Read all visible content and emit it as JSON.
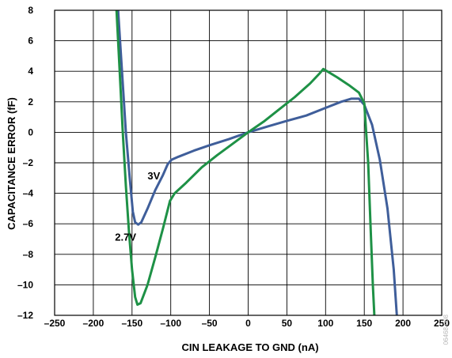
{
  "chart_data": {
    "type": "line",
    "title": "",
    "xlabel": "CIN LEAKAGE TO GND (nA)",
    "ylabel": "CAPACITANCE ERROR (fF)",
    "xlim": [
      -250,
      250
    ],
    "ylim": [
      -12,
      8
    ],
    "xticks": [
      "–250",
      "–200",
      "–150",
      "–100",
      "–50",
      "0",
      "50",
      "100",
      "150",
      "200",
      "250"
    ],
    "yticks": [
      "–12",
      "–10",
      "–8",
      "–6",
      "–4",
      "–2",
      "0",
      "2",
      "4",
      "6",
      "8"
    ],
    "grid": true,
    "figure_id": "06468-008",
    "series": [
      {
        "name": "3V",
        "color": "#3f5e9a",
        "points": [
          [
            -168,
            8
          ],
          [
            -163,
            4
          ],
          [
            -158,
            0
          ],
          [
            -153,
            -3
          ],
          [
            -149,
            -5.2
          ],
          [
            -146,
            -5.9
          ],
          [
            -142,
            -6.05
          ],
          [
            -138,
            -5.9
          ],
          [
            -130,
            -5.0
          ],
          [
            -120,
            -3.8
          ],
          [
            -110,
            -2.8
          ],
          [
            -104,
            -2.1
          ],
          [
            -99,
            -1.8
          ],
          [
            -90,
            -1.6
          ],
          [
            -70,
            -1.2
          ],
          [
            -50,
            -0.85
          ],
          [
            -25,
            -0.45
          ],
          [
            0,
            0
          ],
          [
            25,
            0.38
          ],
          [
            50,
            0.75
          ],
          [
            75,
            1.1
          ],
          [
            100,
            1.6
          ],
          [
            120,
            2.0
          ],
          [
            133,
            2.2
          ],
          [
            143,
            2.2
          ],
          [
            150,
            1.8
          ],
          [
            160,
            0.5
          ],
          [
            170,
            -1.8
          ],
          [
            180,
            -5.0
          ],
          [
            188,
            -9.0
          ],
          [
            192,
            -12
          ]
        ]
      },
      {
        "name": "2.7V",
        "color": "#1e9146",
        "points": [
          [
            -170,
            8
          ],
          [
            -166,
            4
          ],
          [
            -162,
            0
          ],
          [
            -158,
            -3.5
          ],
          [
            -154,
            -6.5
          ],
          [
            -150,
            -9.0
          ],
          [
            -146,
            -10.8
          ],
          [
            -143,
            -11.3
          ],
          [
            -139,
            -11.2
          ],
          [
            -130,
            -10.0
          ],
          [
            -120,
            -8.2
          ],
          [
            -110,
            -6.3
          ],
          [
            -101,
            -4.5
          ],
          [
            -95,
            -4.0
          ],
          [
            -80,
            -3.3
          ],
          [
            -60,
            -2.3
          ],
          [
            -40,
            -1.5
          ],
          [
            -20,
            -0.75
          ],
          [
            0,
            0
          ],
          [
            20,
            0.7
          ],
          [
            40,
            1.5
          ],
          [
            60,
            2.3
          ],
          [
            80,
            3.2
          ],
          [
            93,
            3.9
          ],
          [
            97,
            4.15
          ],
          [
            102,
            4.0
          ],
          [
            115,
            3.6
          ],
          [
            130,
            3.1
          ],
          [
            143,
            2.6
          ],
          [
            150,
            1.9
          ],
          [
            155,
            -2
          ],
          [
            158,
            -6
          ],
          [
            161,
            -10
          ],
          [
            163,
            -12
          ]
        ]
      }
    ],
    "annotations": [
      {
        "text": "3V",
        "x": -130,
        "y": -3.1
      },
      {
        "text": "2.7V",
        "x": -172,
        "y": -7.1
      }
    ]
  }
}
